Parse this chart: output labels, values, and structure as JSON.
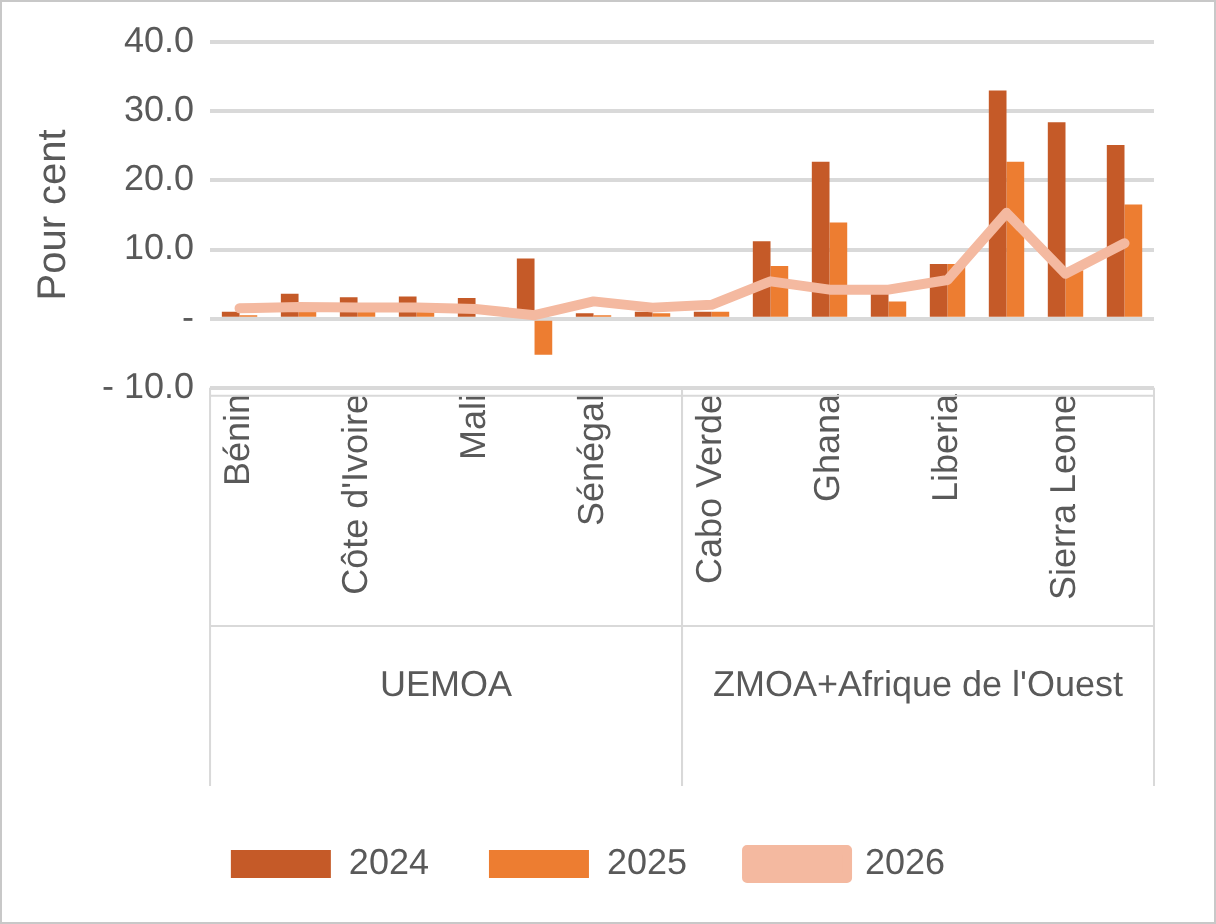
{
  "chart_data": {
    "type": "bar",
    "ylabel": "Pour cent",
    "categories": [
      "Bénin",
      null,
      "Côte d'Ivoire",
      null,
      "Mali",
      null,
      "Sénégal",
      null,
      "Cabo Verde",
      null,
      "Ghana",
      null,
      "Liberia",
      null,
      "Sierra Leone",
      null
    ],
    "series": [
      {
        "name": "2024",
        "color": "#c55a28",
        "values": [
          1.0,
          3.6,
          3.1,
          3.2,
          3.0,
          8.7,
          0.8,
          1.0,
          1.0,
          11.2,
          22.7,
          3.6,
          7.9,
          33.0,
          28.4,
          25.1
        ]
      },
      {
        "name": "2025",
        "color": "#ed7d31",
        "values": [
          0.5,
          1.0,
          1.0,
          1.0,
          null,
          -5.2,
          0.5,
          0.8,
          1.0,
          7.6,
          13.9,
          2.5,
          7.9,
          22.7,
          7.0,
          16.5
        ]
      },
      {
        "name": "2026",
        "type": "line",
        "color": "#f4b9a0",
        "values": [
          1.5,
          1.7,
          1.6,
          1.6,
          1.4,
          0.5,
          2.5,
          1.6,
          2.0,
          5.4,
          4.2,
          4.2,
          5.6,
          15.3,
          6.5,
          10.9
        ]
      }
    ],
    "ylim": [
      -10,
      40
    ],
    "yticks": [
      {
        "value": -10,
        "label": "- 10.0"
      },
      {
        "value": 0,
        "label": "-"
      },
      {
        "value": 10,
        "label": "10.0"
      },
      {
        "value": 20,
        "label": "20.0"
      },
      {
        "value": 30,
        "label": "30.0"
      },
      {
        "value": 40,
        "label": "40.0"
      }
    ],
    "annotations": [
      "UEMOA",
      "ZMOA+Afrique de l'Ouest"
    ],
    "grid": "y",
    "legend": "bottom",
    "marker": "none"
  }
}
